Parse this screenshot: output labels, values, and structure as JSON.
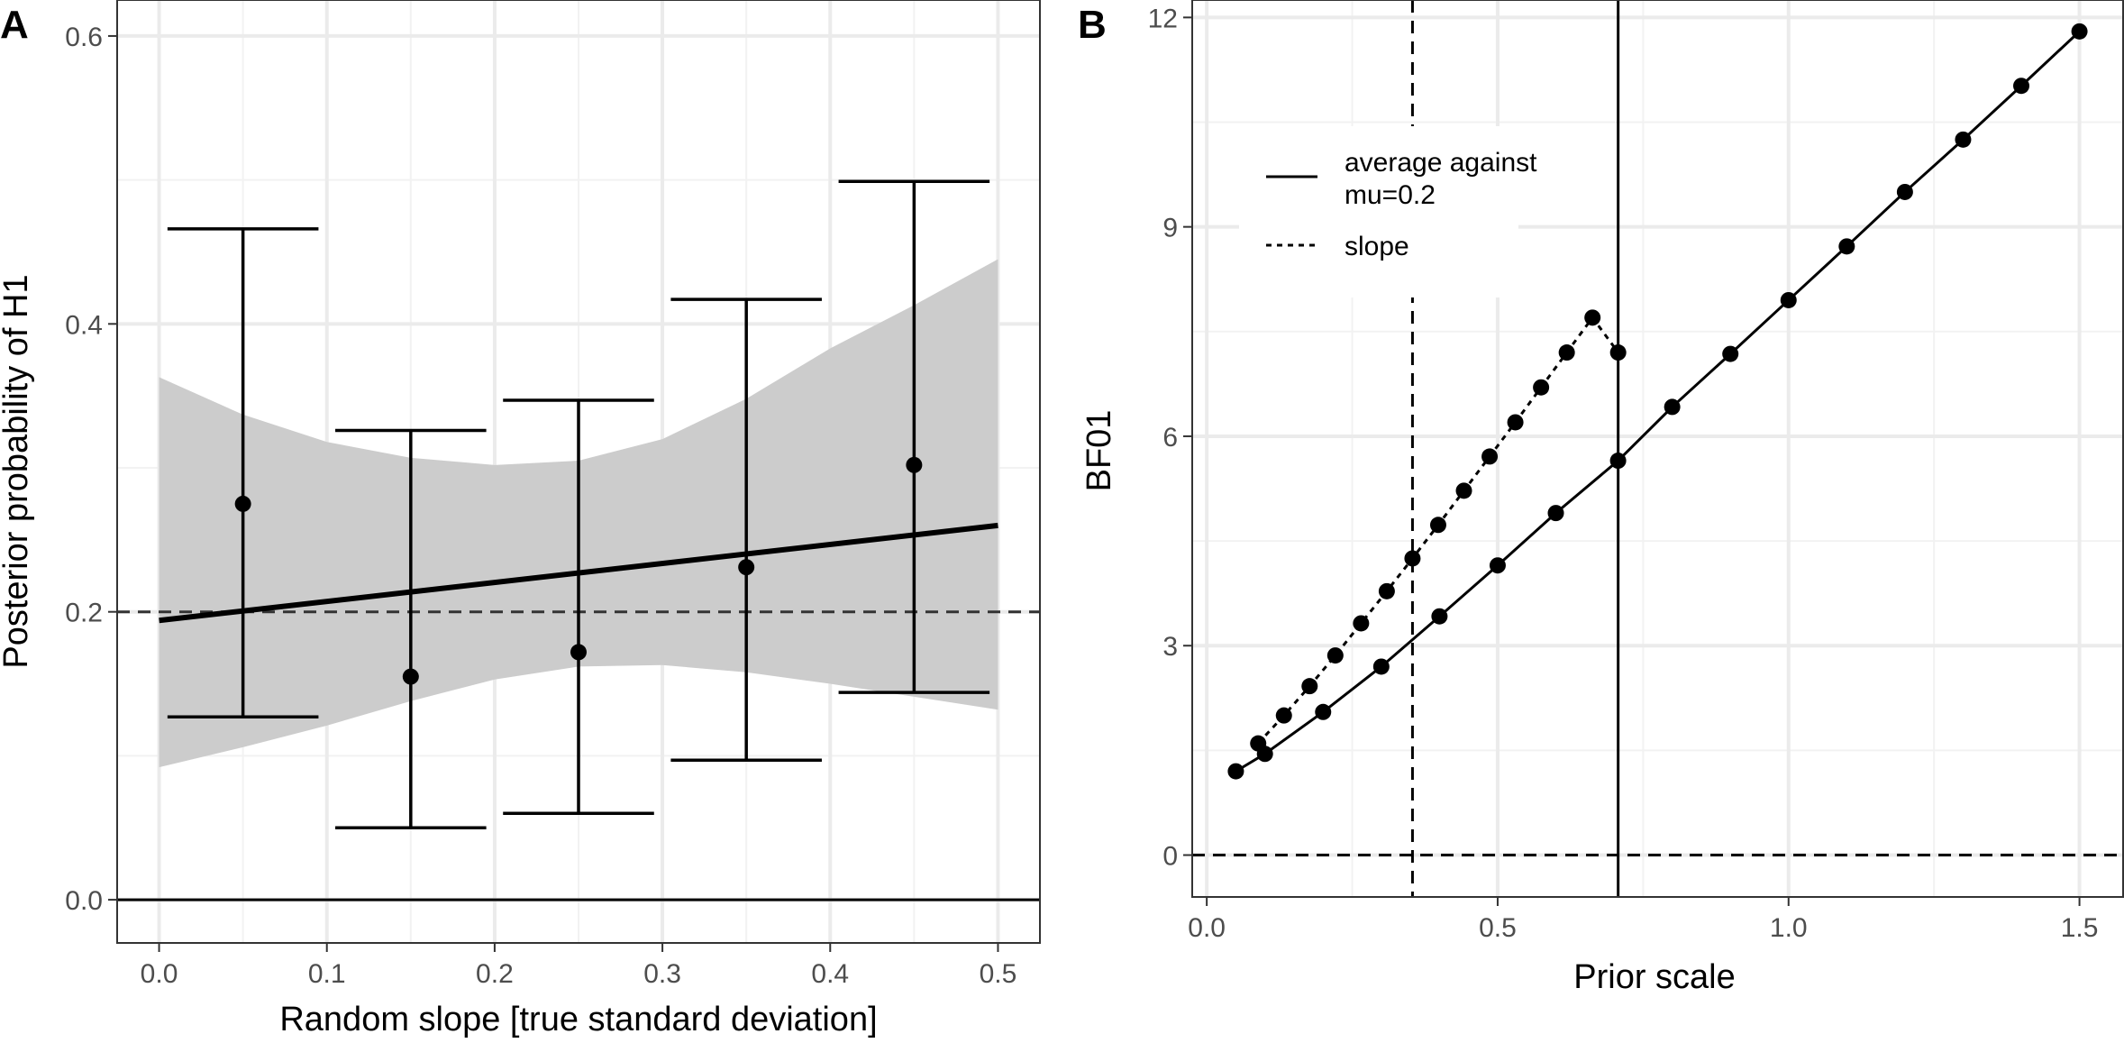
{
  "chart_data": [
    {
      "panel_label": "A",
      "type": "scatter",
      "xlabel": "Random slope [true standard deviation]",
      "ylabel": "Posterior probability of H1",
      "xlim": [
        -0.025,
        0.525
      ],
      "ylim": [
        -0.03,
        0.625
      ],
      "x_ticks": [
        0.0,
        0.1,
        0.2,
        0.3,
        0.4,
        0.5
      ],
      "x_tick_labels": [
        "0.0",
        "0.1",
        "0.2",
        "0.3",
        "0.4",
        "0.5"
      ],
      "y_ticks": [
        0.0,
        0.2,
        0.4,
        0.6
      ],
      "y_tick_labels": [
        "0.0",
        "0.2",
        "0.4",
        "0.6"
      ],
      "grid": true,
      "points": {
        "x": [
          0.05,
          0.15,
          0.25,
          0.35,
          0.45
        ],
        "y": [
          0.275,
          0.155,
          0.172,
          0.231,
          0.302
        ],
        "error_low": [
          0.127,
          0.05,
          0.06,
          0.097,
          0.144
        ],
        "error_high": [
          0.466,
          0.326,
          0.347,
          0.417,
          0.499
        ]
      },
      "trend_line": {
        "x": [
          0.0,
          0.5
        ],
        "y": [
          0.194,
          0.26
        ]
      },
      "confidence_band": {
        "x": [
          0.0,
          0.05,
          0.1,
          0.15,
          0.2,
          0.25,
          0.3,
          0.35,
          0.4,
          0.45,
          0.5
        ],
        "lower": [
          0.092,
          0.106,
          0.121,
          0.138,
          0.153,
          0.162,
          0.163,
          0.158,
          0.15,
          0.141,
          0.132
        ],
        "upper": [
          0.363,
          0.337,
          0.318,
          0.307,
          0.302,
          0.305,
          0.32,
          0.348,
          0.383,
          0.413,
          0.445
        ]
      },
      "hlines": [
        {
          "y": 0.2,
          "style": "dashed"
        },
        {
          "y": 0.0,
          "style": "solid"
        }
      ]
    },
    {
      "panel_label": "B",
      "type": "line",
      "xlabel": "Prior scale",
      "ylabel": "BF01",
      "xlim": [
        -0.025,
        1.575
      ],
      "ylim": [
        -0.6,
        12.25
      ],
      "x_ticks": [
        0.0,
        0.5,
        1.0,
        1.5
      ],
      "x_tick_labels": [
        "0.0",
        "0.5",
        "1.0",
        "1.5"
      ],
      "y_ticks": [
        0,
        3,
        6,
        9,
        12
      ],
      "y_tick_labels": [
        "0",
        "3",
        "6",
        "9",
        "12"
      ],
      "grid": true,
      "legend_position": "top-left",
      "series": [
        {
          "name": "average against\nmu=0.2",
          "style": "solid",
          "x": [
            0.05,
            0.1,
            0.2,
            0.3,
            0.4,
            0.5,
            0.6,
            0.707,
            0.8,
            0.9,
            1.0,
            1.1,
            1.2,
            1.3,
            1.4,
            1.5
          ],
          "y": [
            1.2,
            1.45,
            2.05,
            2.7,
            3.42,
            4.15,
            4.9,
            5.65,
            6.42,
            7.18,
            7.95,
            8.72,
            9.5,
            10.25,
            11.02,
            11.8
          ]
        },
        {
          "name": "slope",
          "style": "dotted",
          "x": [
            0.0884,
            0.1326,
            0.1768,
            0.221,
            0.2652,
            0.3094,
            0.3536,
            0.3978,
            0.442,
            0.4862,
            0.5304,
            0.5746,
            0.6188,
            0.663,
            0.7071
          ],
          "y": [
            1.6,
            2.0,
            2.42,
            2.86,
            3.32,
            3.78,
            4.25,
            4.73,
            5.22,
            5.71,
            6.2,
            6.7,
            7.2,
            7.7,
            7.2
          ]
        }
      ],
      "vlines": [
        {
          "x": 0.3536,
          "style": "dashed"
        },
        {
          "x": 0.7071,
          "style": "solid"
        }
      ],
      "hlines": [
        {
          "y": 0,
          "style": "dashed"
        }
      ]
    }
  ]
}
